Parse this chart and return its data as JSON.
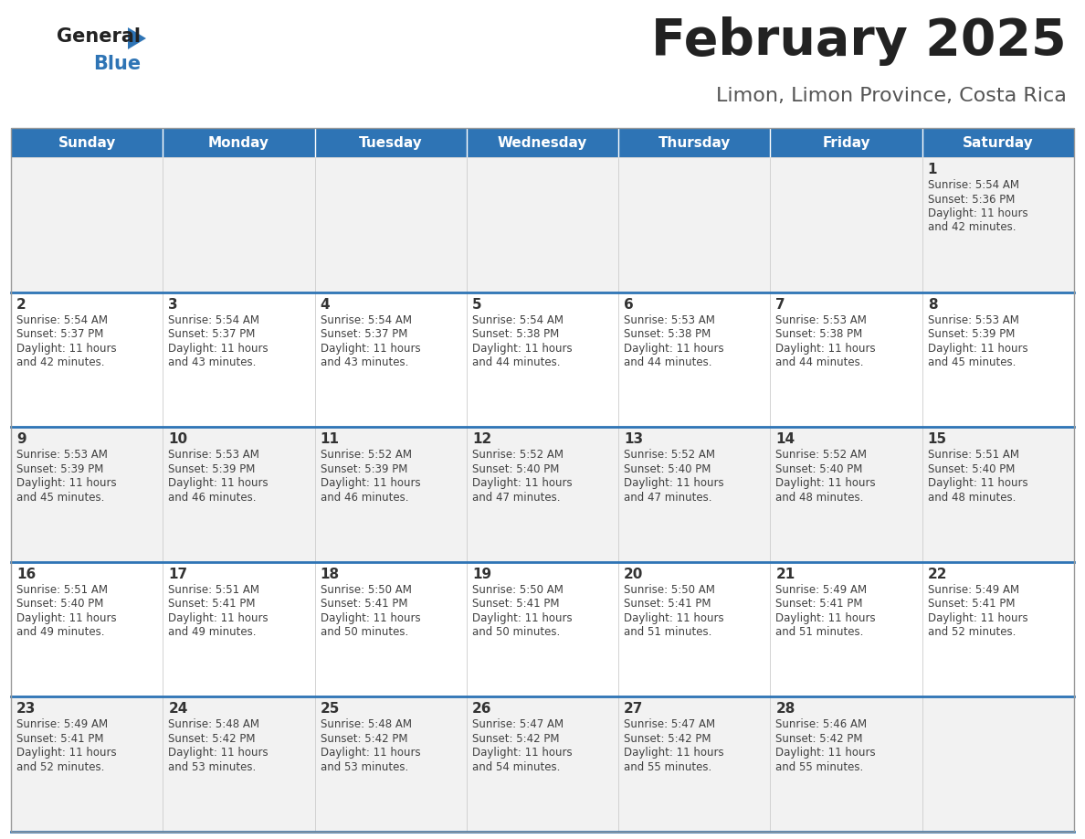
{
  "title": "February 2025",
  "subtitle": "Limon, Limon Province, Costa Rica",
  "header_bg": "#2E74B5",
  "header_text_color": "#FFFFFF",
  "cell_bg_odd": "#F2F2F2",
  "cell_bg_even": "#FFFFFF",
  "separator_color": "#2E74B5",
  "cell_border_color": "#CCCCCC",
  "text_color": "#404040",
  "day_number_color": "#333333",
  "day_names": [
    "Sunday",
    "Monday",
    "Tuesday",
    "Wednesday",
    "Thursday",
    "Friday",
    "Saturday"
  ],
  "days": [
    {
      "day": 1,
      "col": 6,
      "row": 0,
      "sunrise": "5:54 AM",
      "sunset": "5:36 PM",
      "daylight_l1": "Daylight: 11 hours",
      "daylight_l2": "and 42 minutes."
    },
    {
      "day": 2,
      "col": 0,
      "row": 1,
      "sunrise": "5:54 AM",
      "sunset": "5:37 PM",
      "daylight_l1": "Daylight: 11 hours",
      "daylight_l2": "and 42 minutes."
    },
    {
      "day": 3,
      "col": 1,
      "row": 1,
      "sunrise": "5:54 AM",
      "sunset": "5:37 PM",
      "daylight_l1": "Daylight: 11 hours",
      "daylight_l2": "and 43 minutes."
    },
    {
      "day": 4,
      "col": 2,
      "row": 1,
      "sunrise": "5:54 AM",
      "sunset": "5:37 PM",
      "daylight_l1": "Daylight: 11 hours",
      "daylight_l2": "and 43 minutes."
    },
    {
      "day": 5,
      "col": 3,
      "row": 1,
      "sunrise": "5:54 AM",
      "sunset": "5:38 PM",
      "daylight_l1": "Daylight: 11 hours",
      "daylight_l2": "and 44 minutes."
    },
    {
      "day": 6,
      "col": 4,
      "row": 1,
      "sunrise": "5:53 AM",
      "sunset": "5:38 PM",
      "daylight_l1": "Daylight: 11 hours",
      "daylight_l2": "and 44 minutes."
    },
    {
      "day": 7,
      "col": 5,
      "row": 1,
      "sunrise": "5:53 AM",
      "sunset": "5:38 PM",
      "daylight_l1": "Daylight: 11 hours",
      "daylight_l2": "and 44 minutes."
    },
    {
      "day": 8,
      "col": 6,
      "row": 1,
      "sunrise": "5:53 AM",
      "sunset": "5:39 PM",
      "daylight_l1": "Daylight: 11 hours",
      "daylight_l2": "and 45 minutes."
    },
    {
      "day": 9,
      "col": 0,
      "row": 2,
      "sunrise": "5:53 AM",
      "sunset": "5:39 PM",
      "daylight_l1": "Daylight: 11 hours",
      "daylight_l2": "and 45 minutes."
    },
    {
      "day": 10,
      "col": 1,
      "row": 2,
      "sunrise": "5:53 AM",
      "sunset": "5:39 PM",
      "daylight_l1": "Daylight: 11 hours",
      "daylight_l2": "and 46 minutes."
    },
    {
      "day": 11,
      "col": 2,
      "row": 2,
      "sunrise": "5:52 AM",
      "sunset": "5:39 PM",
      "daylight_l1": "Daylight: 11 hours",
      "daylight_l2": "and 46 minutes."
    },
    {
      "day": 12,
      "col": 3,
      "row": 2,
      "sunrise": "5:52 AM",
      "sunset": "5:40 PM",
      "daylight_l1": "Daylight: 11 hours",
      "daylight_l2": "and 47 minutes."
    },
    {
      "day": 13,
      "col": 4,
      "row": 2,
      "sunrise": "5:52 AM",
      "sunset": "5:40 PM",
      "daylight_l1": "Daylight: 11 hours",
      "daylight_l2": "and 47 minutes."
    },
    {
      "day": 14,
      "col": 5,
      "row": 2,
      "sunrise": "5:52 AM",
      "sunset": "5:40 PM",
      "daylight_l1": "Daylight: 11 hours",
      "daylight_l2": "and 48 minutes."
    },
    {
      "day": 15,
      "col": 6,
      "row": 2,
      "sunrise": "5:51 AM",
      "sunset": "5:40 PM",
      "daylight_l1": "Daylight: 11 hours",
      "daylight_l2": "and 48 minutes."
    },
    {
      "day": 16,
      "col": 0,
      "row": 3,
      "sunrise": "5:51 AM",
      "sunset": "5:40 PM",
      "daylight_l1": "Daylight: 11 hours",
      "daylight_l2": "and 49 minutes."
    },
    {
      "day": 17,
      "col": 1,
      "row": 3,
      "sunrise": "5:51 AM",
      "sunset": "5:41 PM",
      "daylight_l1": "Daylight: 11 hours",
      "daylight_l2": "and 49 minutes."
    },
    {
      "day": 18,
      "col": 2,
      "row": 3,
      "sunrise": "5:50 AM",
      "sunset": "5:41 PM",
      "daylight_l1": "Daylight: 11 hours",
      "daylight_l2": "and 50 minutes."
    },
    {
      "day": 19,
      "col": 3,
      "row": 3,
      "sunrise": "5:50 AM",
      "sunset": "5:41 PM",
      "daylight_l1": "Daylight: 11 hours",
      "daylight_l2": "and 50 minutes."
    },
    {
      "day": 20,
      "col": 4,
      "row": 3,
      "sunrise": "5:50 AM",
      "sunset": "5:41 PM",
      "daylight_l1": "Daylight: 11 hours",
      "daylight_l2": "and 51 minutes."
    },
    {
      "day": 21,
      "col": 5,
      "row": 3,
      "sunrise": "5:49 AM",
      "sunset": "5:41 PM",
      "daylight_l1": "Daylight: 11 hours",
      "daylight_l2": "and 51 minutes."
    },
    {
      "day": 22,
      "col": 6,
      "row": 3,
      "sunrise": "5:49 AM",
      "sunset": "5:41 PM",
      "daylight_l1": "Daylight: 11 hours",
      "daylight_l2": "and 52 minutes."
    },
    {
      "day": 23,
      "col": 0,
      "row": 4,
      "sunrise": "5:49 AM",
      "sunset": "5:41 PM",
      "daylight_l1": "Daylight: 11 hours",
      "daylight_l2": "and 52 minutes."
    },
    {
      "day": 24,
      "col": 1,
      "row": 4,
      "sunrise": "5:48 AM",
      "sunset": "5:42 PM",
      "daylight_l1": "Daylight: 11 hours",
      "daylight_l2": "and 53 minutes."
    },
    {
      "day": 25,
      "col": 2,
      "row": 4,
      "sunrise": "5:48 AM",
      "sunset": "5:42 PM",
      "daylight_l1": "Daylight: 11 hours",
      "daylight_l2": "and 53 minutes."
    },
    {
      "day": 26,
      "col": 3,
      "row": 4,
      "sunrise": "5:47 AM",
      "sunset": "5:42 PM",
      "daylight_l1": "Daylight: 11 hours",
      "daylight_l2": "and 54 minutes."
    },
    {
      "day": 27,
      "col": 4,
      "row": 4,
      "sunrise": "5:47 AM",
      "sunset": "5:42 PM",
      "daylight_l1": "Daylight: 11 hours",
      "daylight_l2": "and 55 minutes."
    },
    {
      "day": 28,
      "col": 5,
      "row": 4,
      "sunrise": "5:46 AM",
      "sunset": "5:42 PM",
      "daylight_l1": "Daylight: 11 hours",
      "daylight_l2": "and 55 minutes."
    }
  ],
  "num_rows": 5,
  "num_cols": 7,
  "fig_width": 11.88,
  "fig_height": 9.18,
  "dpi": 100
}
